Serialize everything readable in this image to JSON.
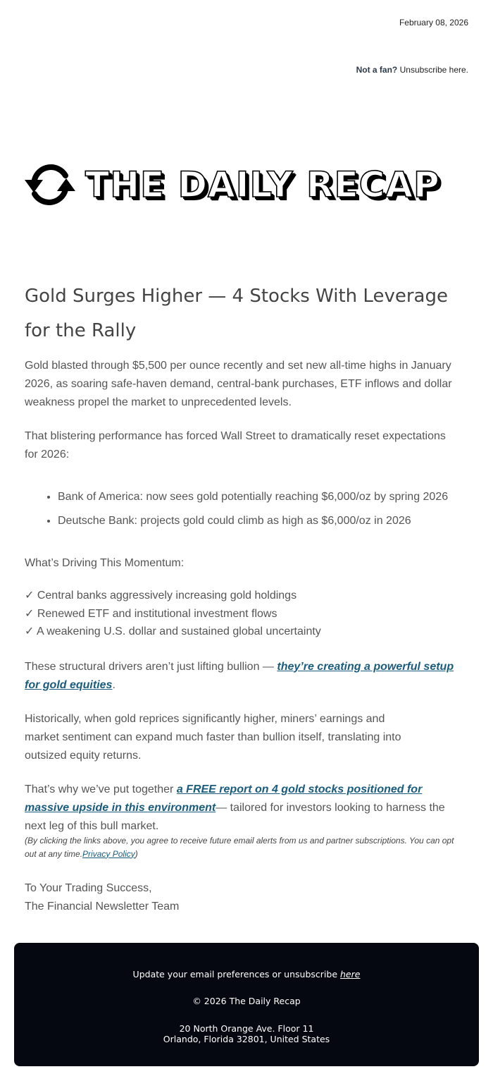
{
  "header": {
    "date": "February 08, 2026",
    "not_a_fan": "Not a fan?",
    "unsubscribe_link": "Unsubscribe here."
  },
  "logo": {
    "text": "THE DAILY RECAP",
    "icon": "refresh-cycle-icon"
  },
  "article": {
    "title": "Gold Surges Higher — 4 Stocks With Leverage for the Rally",
    "p1": "Gold blasted through $5,500 per ounce recently and set new all-time highs in January 2026, as soaring safe-haven demand, central-bank purchases, ETF inflows and dollar weakness propel the market to unprecedented levels.",
    "p2": "That blistering performance has forced Wall Street to dramatically reset expectations for 2026:",
    "bullets": [
      "Bank of America: now sees gold potentially reaching $6,000/oz by spring 2026",
      "Deutsche Bank: projects gold could climb as high as $6,000/oz in 2026"
    ],
    "drivers_heading": "What’s Driving This Momentum:",
    "checks": [
      "✓ Central banks aggressively increasing gold holdings",
      "✓ Renewed ETF and institutional investment flows",
      "✓ A weakening U.S. dollar and sustained global uncertainty"
    ],
    "p3_before": "These structural drivers aren’t just lifting bullion — ",
    "p3_link": "they’re creating a powerful setup for gold equities",
    "p3_after": ".",
    "p4": "Historically, when gold reprices significantly higher, miners’ earnings and market sentiment can expand much faster than bullion itself, translating into outsized equity returns.",
    "p5_before": "That’s why we’ve put together ",
    "p5_link": "a FREE report on 4 gold stocks positioned for massive upside in this environment",
    "p5_after": "— tailored for investors looking to harness the next leg of this bull market.",
    "disclaimer": "(By clicking the links above, you agree to receive future email alerts from us and partner subscriptions. You can opt out at any time.",
    "privacy_link": "Privacy Policy",
    "disclaimer_end": ")",
    "sign_line1": "To Your Trading Success,",
    "sign_line2": "The Financial Newsletter Team"
  },
  "footer": {
    "prefs_text": "Update your email preferences or unsubscribe ",
    "prefs_link": "here",
    "copyright": "© 2026 The Daily Recap",
    "address1": "20 North Orange Ave. Floor 11",
    "address2": "Orlando, Florida 32801, United States"
  },
  "colors": {
    "link": "#1a5c7e",
    "footer_bg": "#050810",
    "body_text": "#555555"
  }
}
